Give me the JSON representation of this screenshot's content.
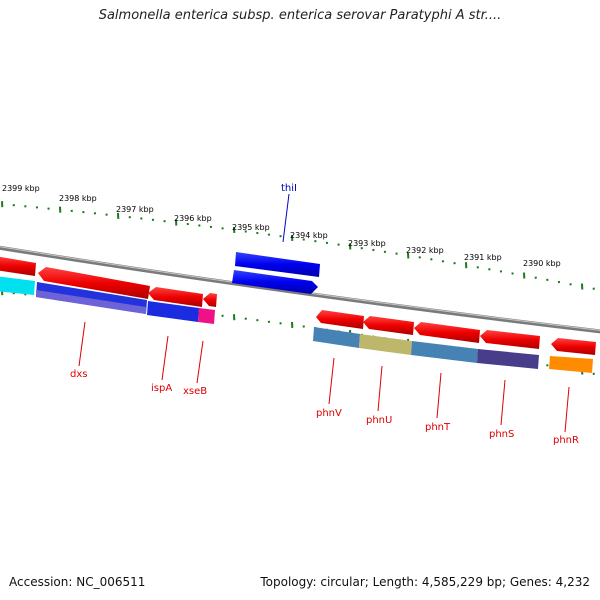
{
  "title": "Salmonella enterica subsp. enterica serovar Paratyphi A str....",
  "footer": {
    "accession": "Accession: NC_006511",
    "topology": "Topology: circular; Length: 4,585,229 bp; Genes: 4,232"
  },
  "kbp_labels": [
    "2399 kbp",
    "2398 kbp",
    "2397 kbp",
    "2396 kbp",
    "2395 kbp",
    "2394 kbp",
    "2393 kbp",
    "2392 kbp",
    "2391 kbp",
    "2390 kbp"
  ],
  "genes": [
    {
      "id": "dxs",
      "label": "dxs",
      "color": "#dd0000"
    },
    {
      "id": "ispA",
      "label": "ispA",
      "color": "#dd0000"
    },
    {
      "id": "xseB",
      "label": "xseB",
      "color": "#dd0000"
    },
    {
      "id": "thiI",
      "label": "thiI",
      "color": "#0000aa"
    },
    {
      "id": "phnV",
      "label": "phnV",
      "color": "#dd0000"
    },
    {
      "id": "phnU",
      "label": "phnU",
      "color": "#dd0000"
    },
    {
      "id": "phnT",
      "label": "phnT",
      "color": "#dd0000"
    },
    {
      "id": "phnS",
      "label": "phnS",
      "color": "#dd0000"
    },
    {
      "id": "phnR",
      "label": "phnR",
      "color": "#dd0000"
    }
  ],
  "colors": {
    "background": "#ffffff",
    "backbone": "#808080",
    "tick": "#1b7a1b",
    "forward_gene": "#0000ee",
    "reverse_gene": "#ee0000",
    "cog_cyan": "#00e5ee",
    "cog_purple": "#6a5acd",
    "cog_blue": "#2233dd",
    "cog_magenta": "#ee1188",
    "cog_steel": "#4682b4",
    "cog_khaki": "#bdb76b",
    "cog_darkslate": "#483d8b",
    "cog_orange": "#ff8c00"
  }
}
